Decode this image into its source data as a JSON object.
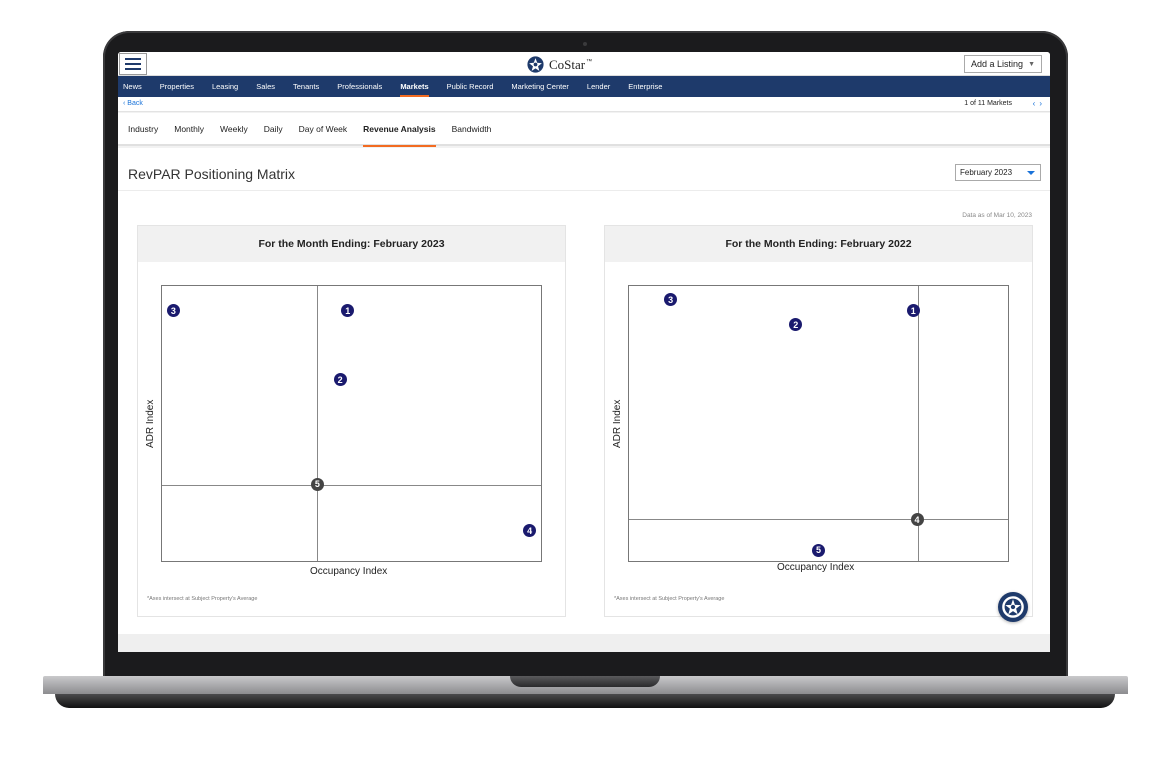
{
  "header": {
    "logo_text": "CoStar",
    "logo_tm": "™",
    "add_listing_label": "Add a Listing"
  },
  "nav": {
    "items": [
      "News",
      "Properties",
      "Leasing",
      "Sales",
      "Tenants",
      "Professionals",
      "Markets",
      "Public Record",
      "Marketing Center",
      "Lender",
      "Enterprise"
    ],
    "active": "Markets"
  },
  "subnav": {
    "back_label": "Back",
    "pager_label": "1 of 11 Markets"
  },
  "tabs": {
    "items": [
      "Industry",
      "Monthly",
      "Weekly",
      "Daily",
      "Day of Week",
      "Revenue Analysis",
      "Bandwidth"
    ],
    "active": "Revenue Analysis"
  },
  "page": {
    "title": "RevPAR Positioning Matrix",
    "period_select_value": "February 2023",
    "data_as_of": "Data as of Mar 10, 2023",
    "footnote": "*Axes intersect at Subject Property's Average"
  },
  "colors": {
    "nav_bg": "#1e3a6b",
    "accent": "#f26b21",
    "marker": "#1a1a6e",
    "subject_marker": "#444444",
    "link": "#1a73d9"
  },
  "chart_data": [
    {
      "type": "scatter",
      "title": "For the Month Ending: February 2023",
      "xlabel": "Occupancy Index",
      "ylabel": "ADR Index",
      "subject": "5",
      "points": [
        {
          "label": "1",
          "x": 0.49,
          "y": 0.91
        },
        {
          "label": "2",
          "x": 0.47,
          "y": 0.66
        },
        {
          "label": "3",
          "x": 0.03,
          "y": 0.91
        },
        {
          "label": "4",
          "x": 0.97,
          "y": 0.11
        },
        {
          "label": "5",
          "x": 0.41,
          "y": 0.28
        }
      ]
    },
    {
      "type": "scatter",
      "title": "For the Month Ending: February 2022",
      "xlabel": "Occupancy Index",
      "ylabel": "ADR Index",
      "subject": "4",
      "points": [
        {
          "label": "1",
          "x": 0.75,
          "y": 0.91
        },
        {
          "label": "2",
          "x": 0.44,
          "y": 0.86
        },
        {
          "label": "3",
          "x": 0.11,
          "y": 0.95
        },
        {
          "label": "4",
          "x": 0.76,
          "y": 0.15
        },
        {
          "label": "5",
          "x": 0.5,
          "y": 0.04
        }
      ]
    }
  ]
}
